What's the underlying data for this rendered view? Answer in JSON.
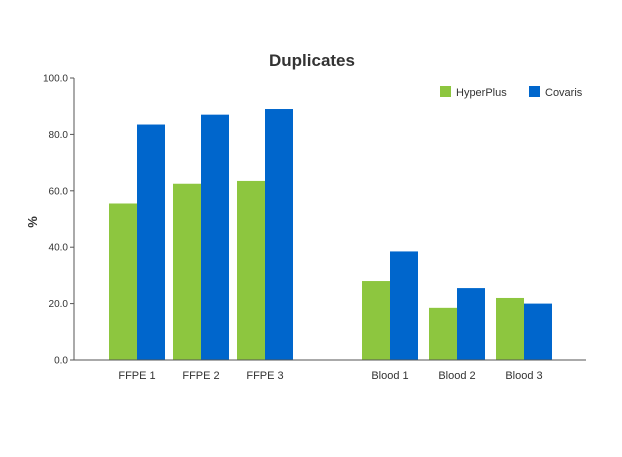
{
  "chart_data": {
    "type": "bar",
    "title": "Duplicates",
    "xlabel": "",
    "ylabel": "%",
    "ylim": [
      0,
      100
    ],
    "yticks": [
      "0.0",
      "20.0",
      "40.0",
      "60.0",
      "80.0",
      "100.0"
    ],
    "grid": false,
    "legend_position": "top-right",
    "categories": [
      "FFPE 1",
      "FFPE 2",
      "FFPE 3",
      "Blood 1",
      "Blood 2",
      "Blood 3"
    ],
    "series": [
      {
        "name": "HyperPlus",
        "color": "#8dc63f",
        "values": [
          55.5,
          62.5,
          63.5,
          28,
          18.5,
          22
        ]
      },
      {
        "name": "Covaris",
        "color": "#0066cc",
        "values": [
          83.5,
          87,
          89,
          38.5,
          25.5,
          20
        ]
      }
    ]
  }
}
